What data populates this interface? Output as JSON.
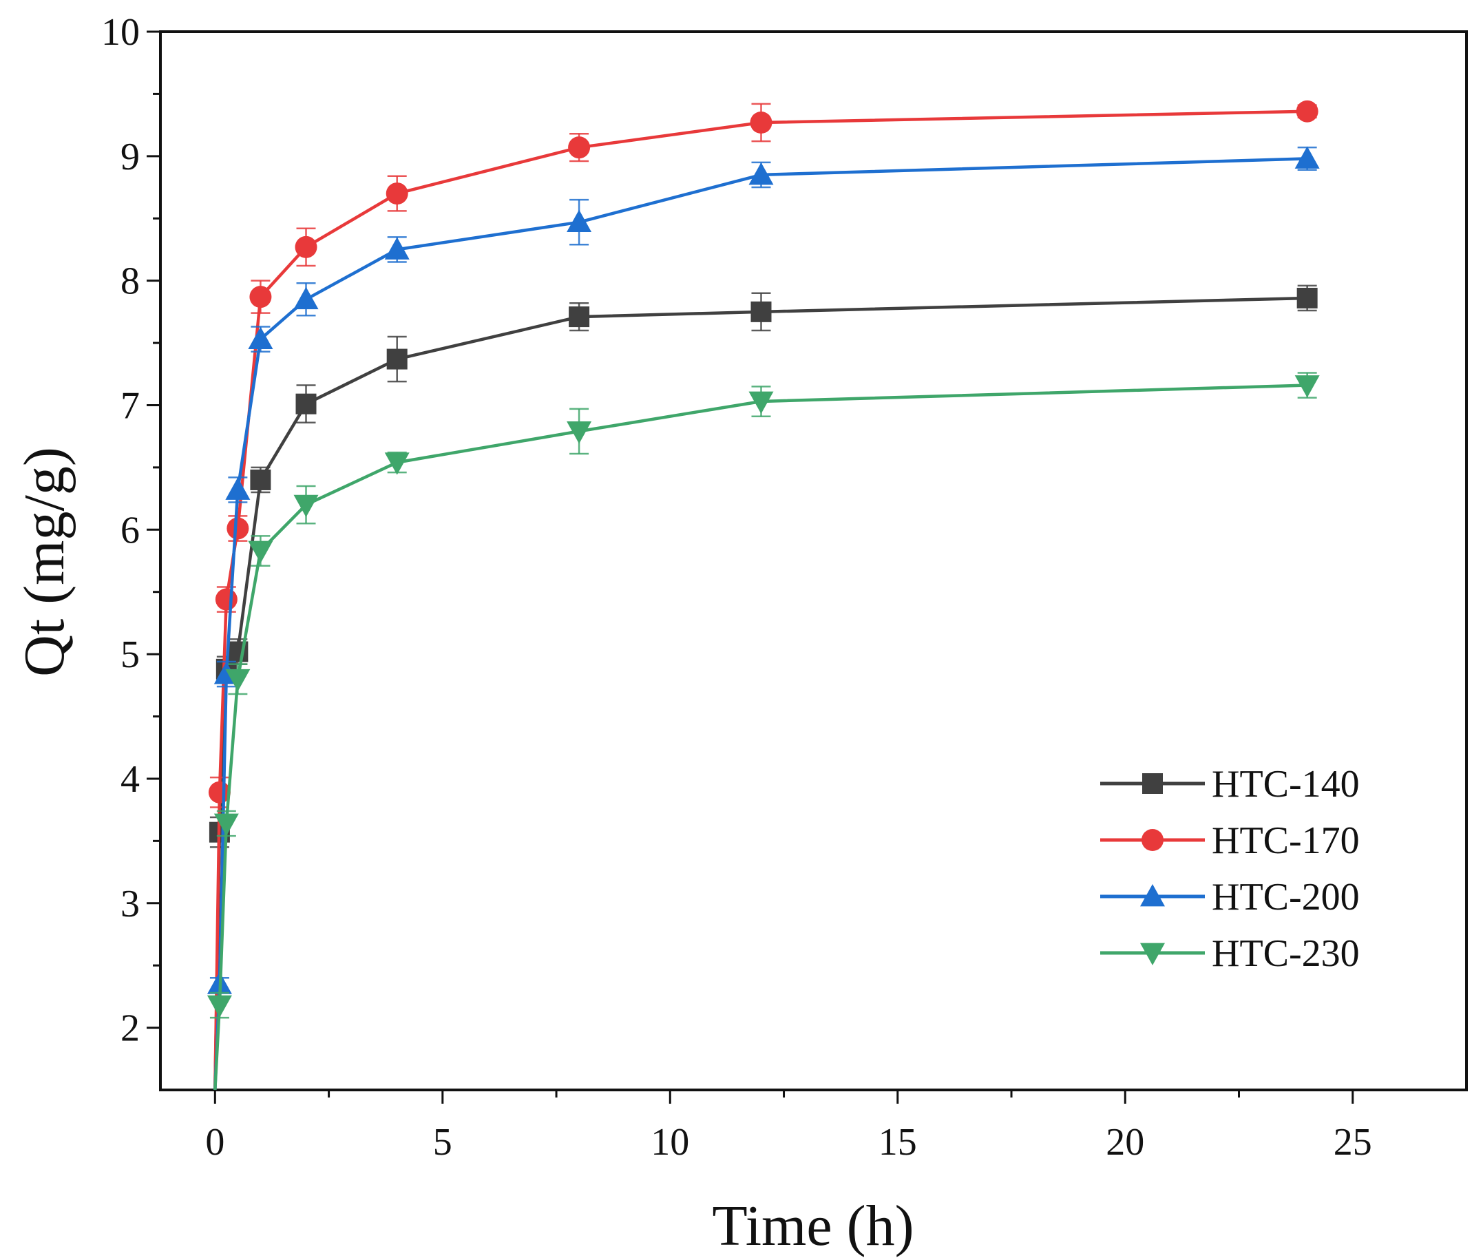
{
  "chart_data": {
    "type": "line",
    "title": "",
    "xlabel": "Time (h)",
    "ylabel": "Qt (mg/g)",
    "xlim": [
      -1.2,
      27.5
    ],
    "ylim": [
      1.5,
      10
    ],
    "xticks": [
      0,
      5,
      10,
      15,
      20,
      25
    ],
    "yticks": [
      2,
      3,
      4,
      5,
      6,
      7,
      8,
      9,
      10
    ],
    "legend_position": "bottom-right",
    "error_bars": true,
    "x": [
      0,
      0.1,
      0.25,
      0.5,
      1,
      2,
      4,
      8,
      12,
      24
    ],
    "series": [
      {
        "name": "HTC-140",
        "color": "#404040",
        "marker": "square",
        "values": [
          1.5,
          3.57,
          4.88,
          5.02,
          6.4,
          7.01,
          7.37,
          7.71,
          7.75,
          7.86
        ],
        "errors": [
          0,
          0.12,
          0.1,
          0.1,
          0.1,
          0.15,
          0.18,
          0.11,
          0.15,
          0.1
        ]
      },
      {
        "name": "HTC-170",
        "color": "#E8393A",
        "marker": "circle",
        "values": [
          1.5,
          3.89,
          5.44,
          6.01,
          7.87,
          8.27,
          8.7,
          9.07,
          9.27,
          9.36
        ],
        "errors": [
          0,
          0.12,
          0.1,
          0.1,
          0.13,
          0.15,
          0.14,
          0.11,
          0.15,
          0.05
        ]
      },
      {
        "name": "HTC-200",
        "color": "#1E6FD0",
        "marker": "triangle-up",
        "values": [
          1.5,
          2.35,
          4.84,
          6.32,
          7.53,
          7.85,
          8.25,
          8.47,
          8.85,
          8.98
        ],
        "errors": [
          0,
          0.05,
          0.1,
          0.1,
          0.1,
          0.13,
          0.1,
          0.18,
          0.1,
          0.09
        ]
      },
      {
        "name": "HTC-230",
        "color": "#3FA66A",
        "marker": "triangle-down",
        "values": [
          1.5,
          2.18,
          3.64,
          4.8,
          5.83,
          6.2,
          6.54,
          6.79,
          7.03,
          7.16
        ],
        "errors": [
          0,
          0.1,
          0.1,
          0.12,
          0.12,
          0.15,
          0.08,
          0.18,
          0.12,
          0.1
        ]
      }
    ]
  }
}
